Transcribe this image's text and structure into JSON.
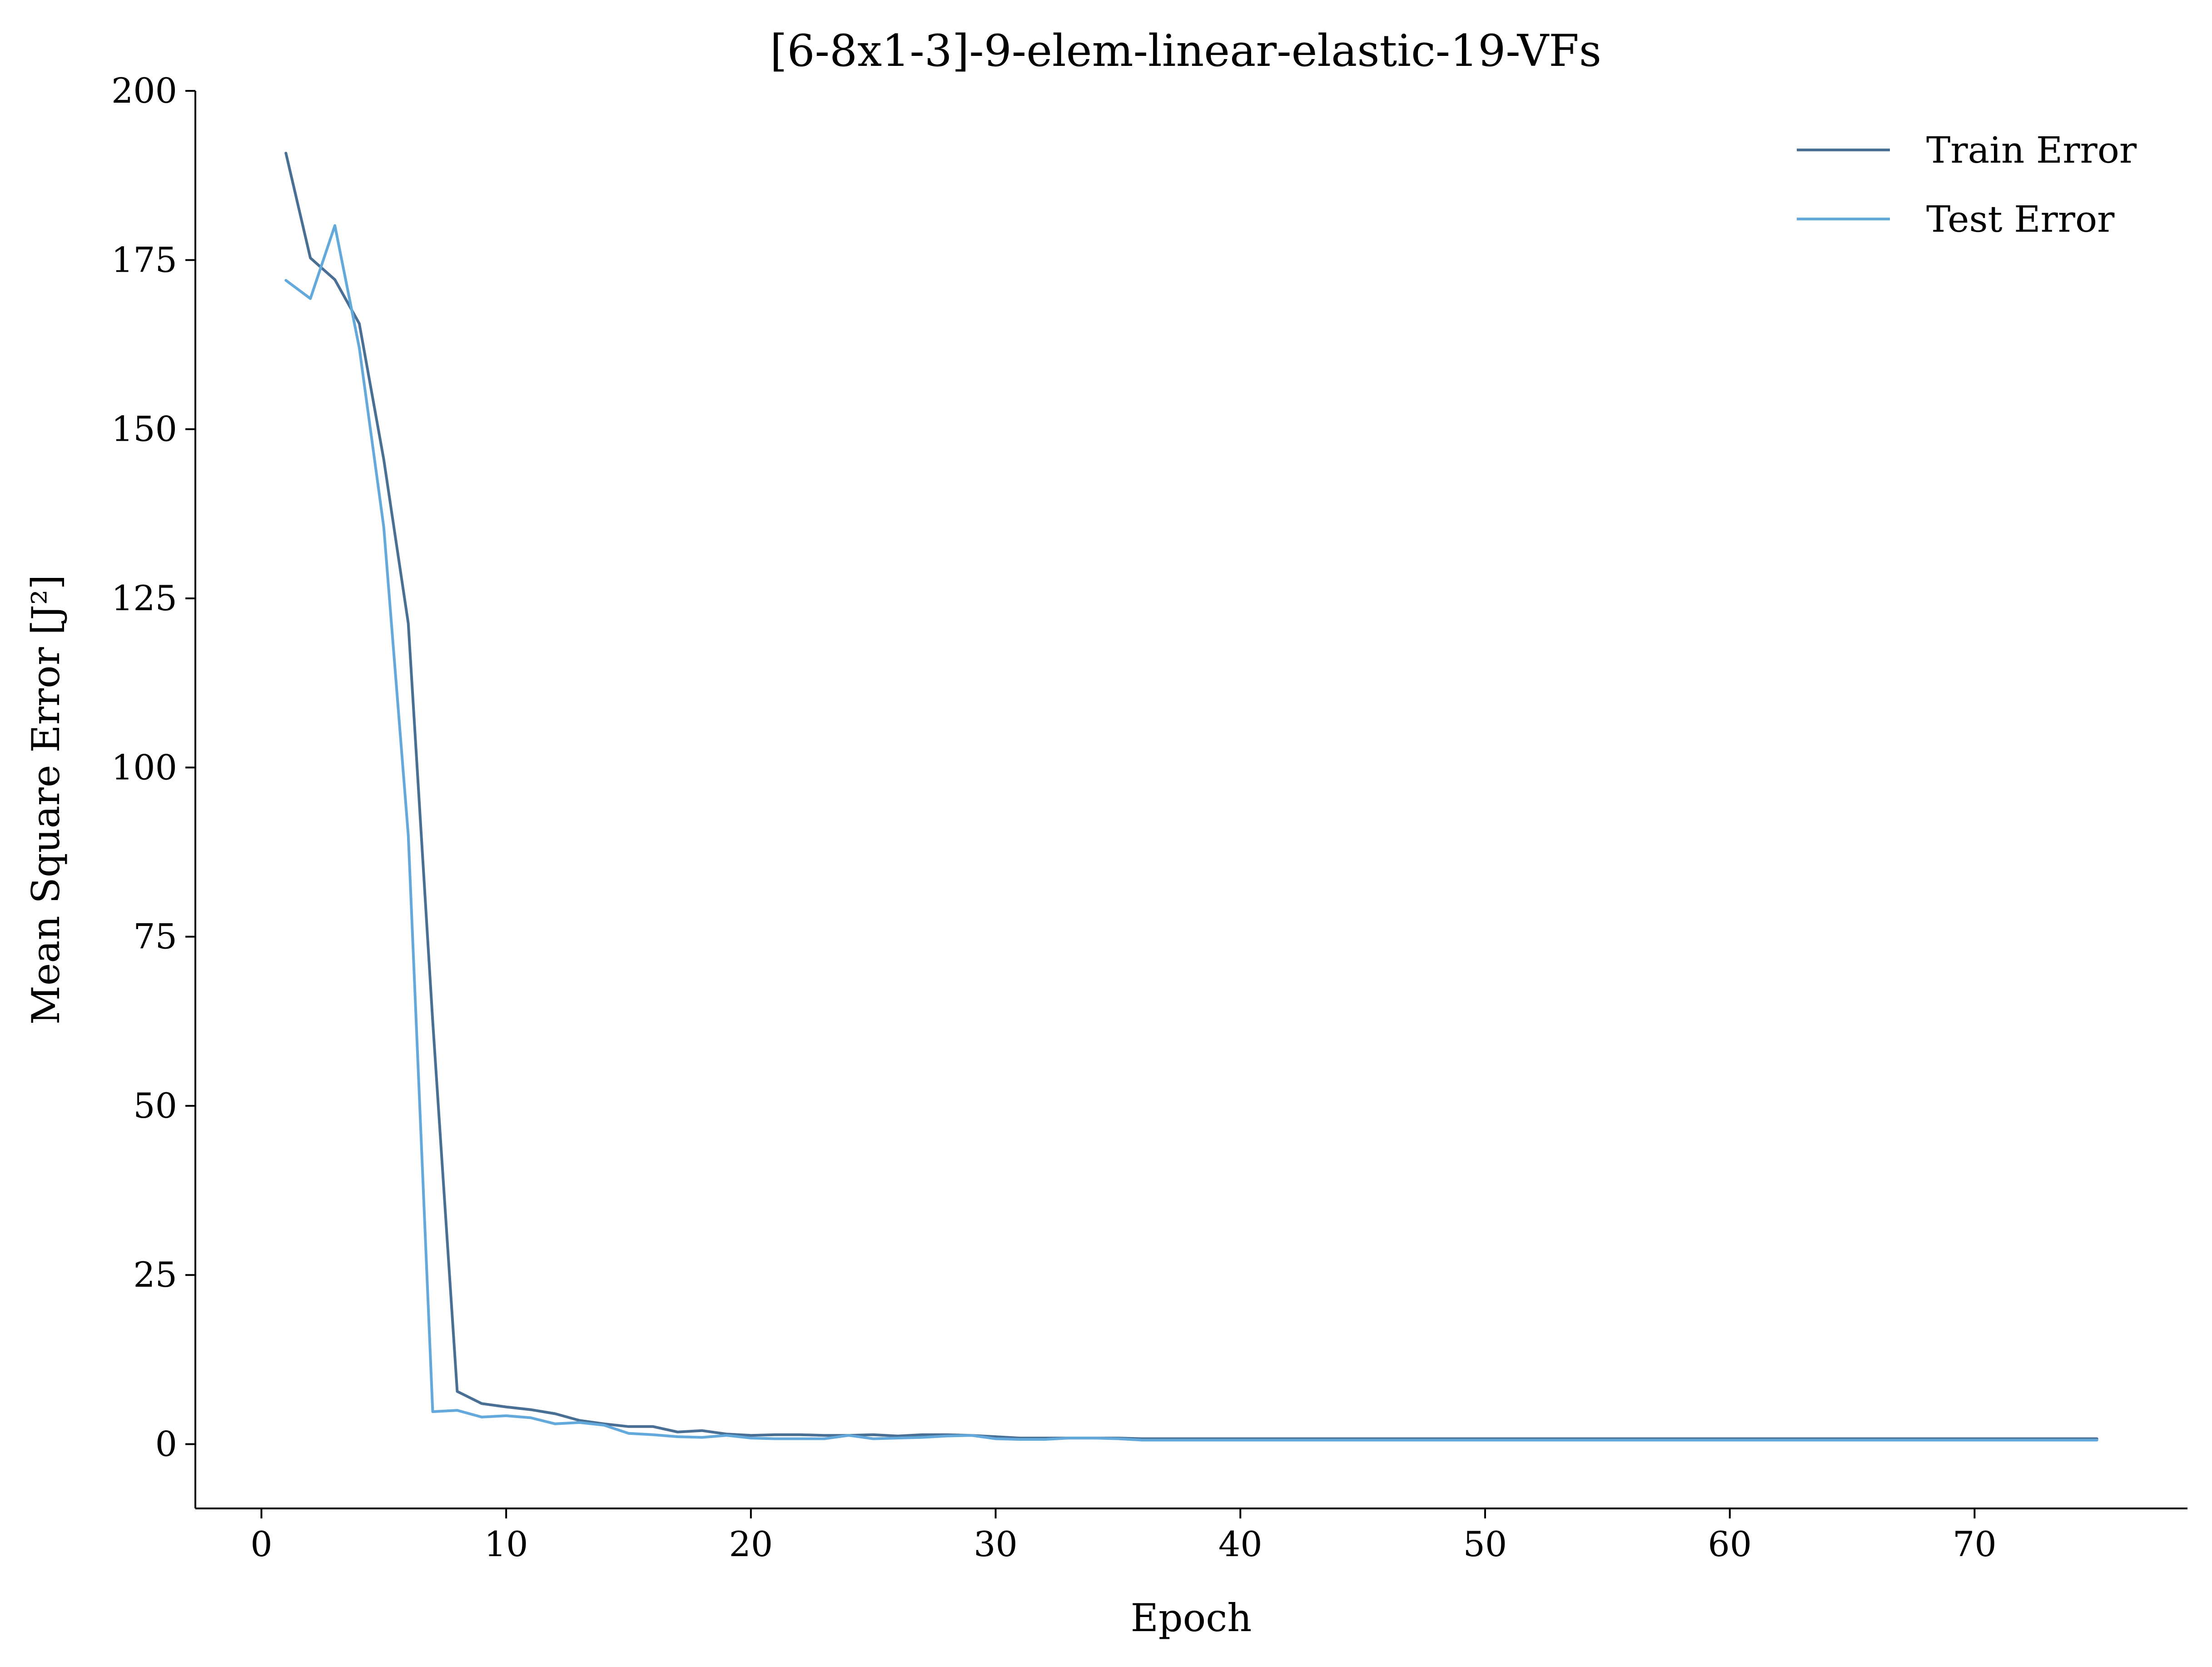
{
  "chart_data": {
    "type": "line",
    "title": "[6-8x1-3]-9-elem-linear-elastic-19-VFs",
    "xlabel": "Epoch",
    "ylabel": "Mean Square Error [J²]",
    "xlim": [
      -2.7,
      78.7
    ],
    "ylim": [
      -9.5,
      200
    ],
    "xticks": [
      0,
      10,
      20,
      30,
      40,
      50,
      60,
      70
    ],
    "yticks": [
      0,
      25,
      50,
      75,
      100,
      125,
      150,
      175,
      200
    ],
    "grid": false,
    "legend": {
      "position": "top-right",
      "frame": false
    },
    "series": [
      {
        "name": "Train Error",
        "color": "#4a6f94",
        "x": [
          1,
          2,
          3,
          4,
          5,
          6,
          7,
          8,
          9,
          10,
          11,
          12,
          13,
          14,
          15,
          16,
          17,
          18,
          19,
          20,
          21,
          22,
          23,
          24,
          25,
          26,
          27,
          28,
          29,
          30,
          31,
          32,
          33,
          34,
          35,
          36,
          37,
          38,
          39,
          40,
          41,
          42,
          43,
          44,
          45,
          46,
          47,
          48,
          49,
          50,
          51,
          52,
          53,
          54,
          55,
          56,
          57,
          58,
          59,
          60,
          61,
          62,
          63,
          64,
          65,
          66,
          67,
          68,
          69,
          70,
          71,
          72,
          73,
          74,
          75
        ],
        "values": [
          190.8,
          175.3,
          172.1,
          165.6,
          145.5,
          121.3,
          62.5,
          7.8,
          6.0,
          5.5,
          5.1,
          4.5,
          3.5,
          3.0,
          2.6,
          2.6,
          1.8,
          2.0,
          1.5,
          1.3,
          1.4,
          1.4,
          1.3,
          1.3,
          1.4,
          1.2,
          1.4,
          1.4,
          1.3,
          1.1,
          0.9,
          0.9,
          0.9,
          0.9,
          0.9,
          0.8,
          0.8,
          0.8,
          0.8,
          0.8,
          0.8,
          0.8,
          0.8,
          0.8,
          0.8,
          0.8,
          0.8,
          0.8,
          0.8,
          0.8,
          0.8,
          0.8,
          0.8,
          0.8,
          0.8,
          0.8,
          0.8,
          0.8,
          0.8,
          0.8,
          0.8,
          0.8,
          0.8,
          0.8,
          0.8,
          0.8,
          0.8,
          0.8,
          0.8,
          0.8,
          0.8,
          0.8,
          0.8,
          0.8,
          0.8
        ]
      },
      {
        "name": "Test Error",
        "color": "#63a9dc",
        "x": [
          1,
          2,
          3,
          4,
          5,
          6,
          7,
          8,
          9,
          10,
          11,
          12,
          13,
          14,
          15,
          16,
          17,
          18,
          19,
          20,
          21,
          22,
          23,
          24,
          25,
          26,
          27,
          28,
          29,
          30,
          31,
          32,
          33,
          34,
          35,
          36,
          37,
          38,
          39,
          40,
          41,
          42,
          43,
          44,
          45,
          46,
          47,
          48,
          49,
          50,
          51,
          52,
          53,
          54,
          55,
          56,
          57,
          58,
          59,
          60,
          61,
          62,
          63,
          64,
          65,
          66,
          67,
          68,
          69,
          70,
          71,
          72,
          73,
          74,
          75
        ],
        "values": [
          172.0,
          169.3,
          180.1,
          162.0,
          135.5,
          90.0,
          4.8,
          5.0,
          4.0,
          4.2,
          3.9,
          3.0,
          3.2,
          2.8,
          1.6,
          1.4,
          1.1,
          1.0,
          1.3,
          0.9,
          0.8,
          0.8,
          0.8,
          1.3,
          0.8,
          0.9,
          1.0,
          1.2,
          1.3,
          0.8,
          0.7,
          0.7,
          0.9,
          0.9,
          0.8,
          0.6,
          0.6,
          0.6,
          0.6,
          0.6,
          0.6,
          0.6,
          0.6,
          0.6,
          0.6,
          0.6,
          0.6,
          0.6,
          0.6,
          0.6,
          0.6,
          0.6,
          0.6,
          0.6,
          0.6,
          0.6,
          0.6,
          0.6,
          0.6,
          0.6,
          0.6,
          0.6,
          0.6,
          0.6,
          0.6,
          0.6,
          0.6,
          0.6,
          0.6,
          0.6,
          0.6,
          0.6,
          0.6,
          0.6,
          0.6
        ]
      }
    ]
  }
}
